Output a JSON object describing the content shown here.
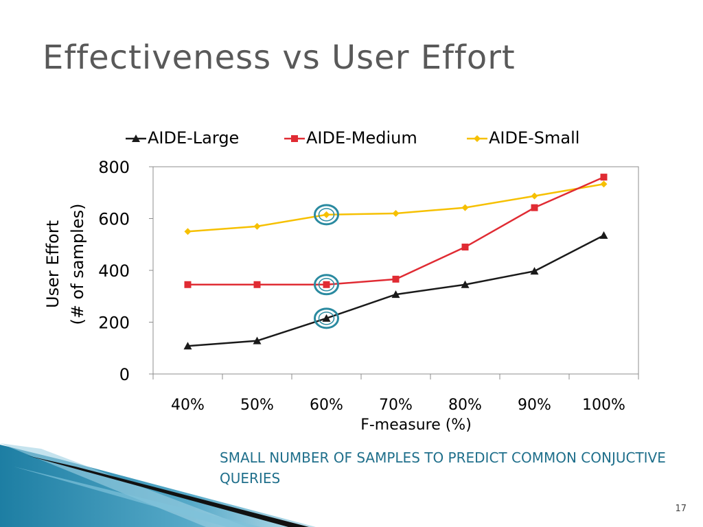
{
  "slide": {
    "title": "Effectiveness vs User Effort",
    "footer_note": "SMALL NUMBER OF SAMPLES TO PREDICT COMMON CONJUCTIVE QUERIES",
    "page_number": "17"
  },
  "colors": {
    "large": "#1a1a1a",
    "medium": "#e02b33",
    "small": "#f6c000",
    "highlight": "#2a8aa0",
    "footer_text": "#1f6f8b"
  },
  "chart_data": {
    "type": "line",
    "title": "",
    "xlabel": "F-measure (%)",
    "ylabel_lines": [
      "User Effort",
      "(# of samples)"
    ],
    "categories": [
      "40%",
      "50%",
      "60%",
      "70%",
      "80%",
      "90%",
      "100%"
    ],
    "ylim": [
      0,
      800
    ],
    "yticks": [
      "0",
      "200",
      "400",
      "600",
      "800"
    ],
    "ytick_values": [
      0,
      200,
      400,
      600,
      800
    ],
    "legend_position": "top",
    "series": [
      {
        "name": "AIDE-Large",
        "marker": "triangle",
        "values": [
          108,
          128,
          215,
          307,
          345,
          397,
          535
        ]
      },
      {
        "name": "AIDE-Medium",
        "marker": "square",
        "values": [
          345,
          345,
          345,
          366,
          490,
          642,
          760
        ]
      },
      {
        "name": "AIDE-Small",
        "marker": "diamond",
        "values": [
          550,
          570,
          615,
          620,
          642,
          687,
          733
        ]
      }
    ],
    "highlighted": [
      {
        "series": "AIDE-Small",
        "category": "60%"
      },
      {
        "series": "AIDE-Medium",
        "category": "60%"
      },
      {
        "series": "AIDE-Large",
        "category": "60%"
      }
    ]
  }
}
